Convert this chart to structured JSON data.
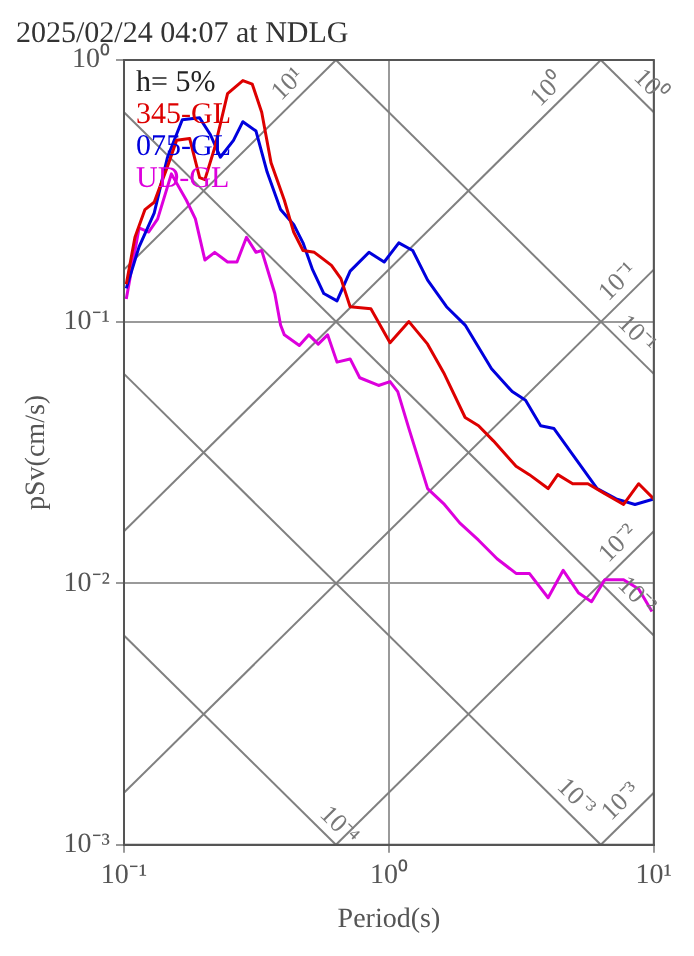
{
  "chart_data": {
    "type": "line",
    "title": "2025/02/24 04:07 at NDLG",
    "xlabel": "Period(s)",
    "ylabel": "pSv(cm/s)",
    "log": "xy",
    "grid": true,
    "legend": "top left",
    "xlim": [
      0.1,
      10
    ],
    "ylim": [
      0.001,
      1
    ],
    "xticks": [
      {
        "value": 0.1,
        "label": "10⁻¹"
      },
      {
        "value": 1,
        "label": "10⁰"
      },
      {
        "value": 10,
        "label": "10¹"
      }
    ],
    "yticks": [
      {
        "value": 0.001,
        "label": "10⁻³"
      },
      {
        "value": 0.01,
        "label": "10⁻²"
      },
      {
        "value": 0.1,
        "label": "10⁻¹"
      },
      {
        "value": 1,
        "label": "10⁰"
      }
    ],
    "series": [
      {
        "name": "345-GL",
        "color": "#dd0000",
        "x": [
          0.102,
          0.11,
          0.12,
          0.13,
          0.146,
          0.158,
          0.177,
          0.193,
          0.202,
          0.22,
          0.246,
          0.281,
          0.305,
          0.331,
          0.359,
          0.403,
          0.437,
          0.474,
          0.523,
          0.607,
          0.659,
          0.714,
          0.855,
          1.01,
          1.19,
          1.4,
          1.62,
          1.94,
          2.18,
          2.48,
          3.02,
          3.39,
          3.99,
          4.34,
          4.94,
          5.64,
          6.53,
          7.69,
          8.77,
          10
        ],
        "values": [
          0.139,
          0.21,
          0.268,
          0.286,
          0.392,
          0.493,
          0.501,
          0.355,
          0.349,
          0.462,
          0.744,
          0.834,
          0.808,
          0.631,
          0.405,
          0.291,
          0.22,
          0.187,
          0.184,
          0.164,
          0.146,
          0.114,
          0.112,
          0.083,
          0.1,
          0.082,
          0.063,
          0.043,
          0.04,
          0.035,
          0.028,
          0.026,
          0.023,
          0.026,
          0.024,
          0.024,
          0.022,
          0.02,
          0.024,
          0.021
        ]
      },
      {
        "name": "075-GL",
        "color": "#0000dd",
        "x": [
          0.102,
          0.114,
          0.13,
          0.146,
          0.166,
          0.193,
          0.212,
          0.231,
          0.259,
          0.281,
          0.315,
          0.347,
          0.39,
          0.437,
          0.474,
          0.515,
          0.568,
          0.637,
          0.714,
          0.841,
          0.96,
          1.09,
          1.23,
          1.4,
          1.65,
          1.94,
          2.44,
          2.92,
          3.28,
          3.74,
          4.2,
          4.94,
          6.11,
          7.21,
          8.49,
          10
        ],
        "values": [
          0.134,
          0.193,
          0.26,
          0.425,
          0.591,
          0.601,
          0.518,
          0.425,
          0.493,
          0.581,
          0.535,
          0.373,
          0.268,
          0.235,
          0.2,
          0.158,
          0.128,
          0.12,
          0.156,
          0.184,
          0.169,
          0.2,
          0.187,
          0.144,
          0.114,
          0.097,
          0.066,
          0.054,
          0.05,
          0.04,
          0.039,
          0.031,
          0.023,
          0.021,
          0.02,
          0.021
        ]
      },
      {
        "name": "UD-GL",
        "color": "#dd00dd",
        "x": [
          0.102,
          0.114,
          0.124,
          0.134,
          0.151,
          0.172,
          0.186,
          0.202,
          0.22,
          0.246,
          0.267,
          0.29,
          0.315,
          0.331,
          0.371,
          0.39,
          0.403,
          0.459,
          0.499,
          0.541,
          0.587,
          0.637,
          0.714,
          0.776,
          0.914,
          1.01,
          1.08,
          1.19,
          1.4,
          1.62,
          1.85,
          2.18,
          2.56,
          3.02,
          3.39,
          3.99,
          4.55,
          5.19,
          5.82,
          6.53,
          7.69,
          8.77,
          9.84
        ],
        "values": [
          0.122,
          0.228,
          0.22,
          0.247,
          0.367,
          0.291,
          0.247,
          0.172,
          0.184,
          0.169,
          0.169,
          0.21,
          0.184,
          0.187,
          0.128,
          0.097,
          0.089,
          0.081,
          0.089,
          0.082,
          0.089,
          0.07,
          0.072,
          0.061,
          0.057,
          0.059,
          0.054,
          0.039,
          0.023,
          0.02,
          0.017,
          0.0146,
          0.0124,
          0.0109,
          0.0109,
          0.0088,
          0.0112,
          0.0092,
          0.0085,
          0.0103,
          0.0103,
          0.0095,
          0.0078
        ]
      },
      {
        "color": "#808080",
        "x": [
          6.31,
          10
        ],
        "values": [
          1,
          0.631
        ]
      },
      {
        "color": "#808080",
        "x": [
          0.631,
          10
        ],
        "values": [
          1,
          0.0631
        ]
      },
      {
        "color": "#808080",
        "x": [
          0.1,
          10
        ],
        "values": [
          0.631,
          0.00631
        ]
      },
      {
        "color": "#808080",
        "x": [
          0.1,
          6.31
        ],
        "values": [
          0.0631,
          0.001
        ]
      },
      {
        "color": "#808080",
        "x": [
          0.1,
          0.631
        ],
        "values": [
          0.00631,
          0.001
        ]
      },
      {
        "color": "#808080",
        "x": [
          0.1,
          0.631
        ],
        "values": [
          0.158,
          1
        ]
      },
      {
        "color": "#808080",
        "x": [
          0.1,
          6.31
        ],
        "values": [
          0.0158,
          1
        ]
      },
      {
        "color": "#808080",
        "x": [
          0.1,
          10
        ],
        "values": [
          0.00158,
          0.158
        ]
      },
      {
        "color": "#808080",
        "x": [
          0.631,
          10
        ],
        "values": [
          0.001,
          0.0158
        ]
      },
      {
        "color": "#808080",
        "x": [
          6.31,
          10
        ],
        "values": [
          0.001,
          0.00158
        ]
      }
    ],
    "annotations": [
      "h= 5%",
      {
        "text": "10¹",
        "x": 0.46,
        "y": 0.73
      },
      {
        "text": "10⁰",
        "x": 4.4,
        "y": 0.697
      },
      {
        "text": "10⁰",
        "x": 8.8,
        "y": 0.718
      },
      {
        "text": "10⁻¹",
        "x": 8.1,
        "y": 0.128
      },
      {
        "text": "10⁻¹",
        "x": 7.8,
        "y": 0.0809
      },
      {
        "text": "10⁻²",
        "x": 8.1,
        "y": 0.0128
      },
      {
        "text": "10⁻²",
        "x": 7.8,
        "y": 0.00809
      },
      {
        "text": "10⁻⁴",
        "x": 0.587,
        "y": 0.00107
      },
      {
        "text": "10⁻³",
        "x": 4.6,
        "y": 0.00137
      },
      {
        "text": "10⁻³",
        "x": 8.3,
        "y": 0.00132
      }
    ]
  }
}
